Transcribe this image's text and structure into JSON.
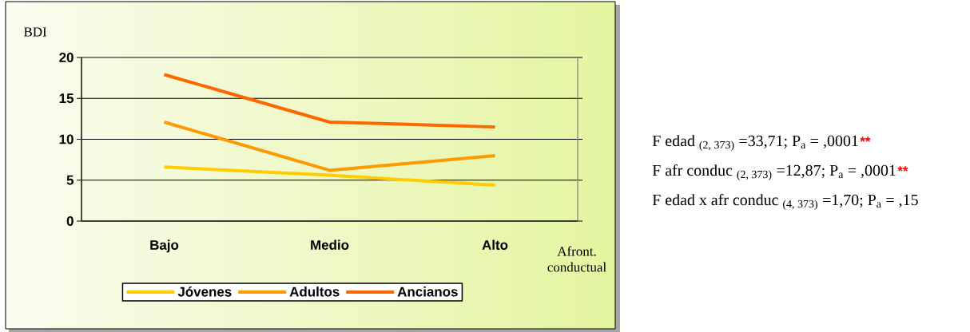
{
  "chart_data": {
    "type": "line",
    "ylabel": "BDI",
    "xlabel": "Afront. conductual",
    "categories": [
      "Bajo",
      "Medio",
      "Alto"
    ],
    "series": [
      {
        "name": "Jóvenes",
        "color": "#ffcc00",
        "values": [
          6.6,
          5.6,
          4.4
        ]
      },
      {
        "name": "Adultos",
        "color": "#ff9900",
        "values": [
          12.1,
          6.2,
          8.0
        ]
      },
      {
        "name": "Ancianos",
        "color": "#ff6600",
        "values": [
          17.9,
          12.1,
          11.5
        ]
      }
    ],
    "ylim": [
      0,
      20
    ],
    "yticks": [
      0,
      5,
      10,
      15,
      20
    ],
    "grid": "y",
    "legend": "bottom",
    "marker": "none",
    "line_style": "solid",
    "annotations": [
      "F edad $_{(2, 373)}$ =33,71; P$_{a}$ = ,0001",
      "**",
      "F afr conduc $_{(2, 373)}$ =12,87; P$_{a}$ = ,0001",
      "**",
      "F edad x afr conduc $_{(4, 373)}$ =1,70; P$_{a}$ = ,15"
    ]
  }
}
